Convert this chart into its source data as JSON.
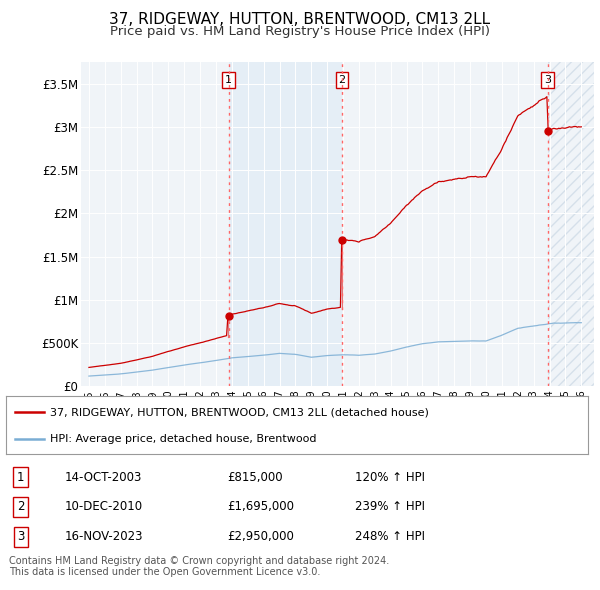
{
  "title": "37, RIDGEWAY, HUTTON, BRENTWOOD, CM13 2LL",
  "subtitle": "Price paid vs. HM Land Registry's House Price Index (HPI)",
  "title_fontsize": 11,
  "subtitle_fontsize": 9.5,
  "background_color": "#ffffff",
  "plot_bg_color": "#f0f4f8",
  "grid_color": "#ffffff",
  "sale_color": "#cc0000",
  "hpi_color": "#7aadd4",
  "ylim": [
    0,
    3750000
  ],
  "yticks": [
    0,
    500000,
    1000000,
    1500000,
    2000000,
    2500000,
    3000000,
    3500000
  ],
  "ytick_labels": [
    "£0",
    "£500K",
    "£1M",
    "£1.5M",
    "£2M",
    "£2.5M",
    "£3M",
    "£3.5M"
  ],
  "sale_dates": [
    2003.79,
    2010.94,
    2023.88
  ],
  "sale_prices": [
    815000,
    1695000,
    2950000
  ],
  "sale_labels": [
    "1",
    "2",
    "3"
  ],
  "vline_color": "#ff6666",
  "legend_entries": [
    "37, RIDGEWAY, HUTTON, BRENTWOOD, CM13 2LL (detached house)",
    "HPI: Average price, detached house, Brentwood"
  ],
  "table_rows": [
    {
      "num": "1",
      "date": "14-OCT-2003",
      "price": "£815,000",
      "pct": "120% ↑ HPI"
    },
    {
      "num": "2",
      "date": "10-DEC-2010",
      "price": "£1,695,000",
      "pct": "239% ↑ HPI"
    },
    {
      "num": "3",
      "date": "16-NOV-2023",
      "price": "£2,950,000",
      "pct": "248% ↑ HPI"
    }
  ],
  "footer": "Contains HM Land Registry data © Crown copyright and database right 2024.\nThis data is licensed under the Open Government Licence v3.0."
}
